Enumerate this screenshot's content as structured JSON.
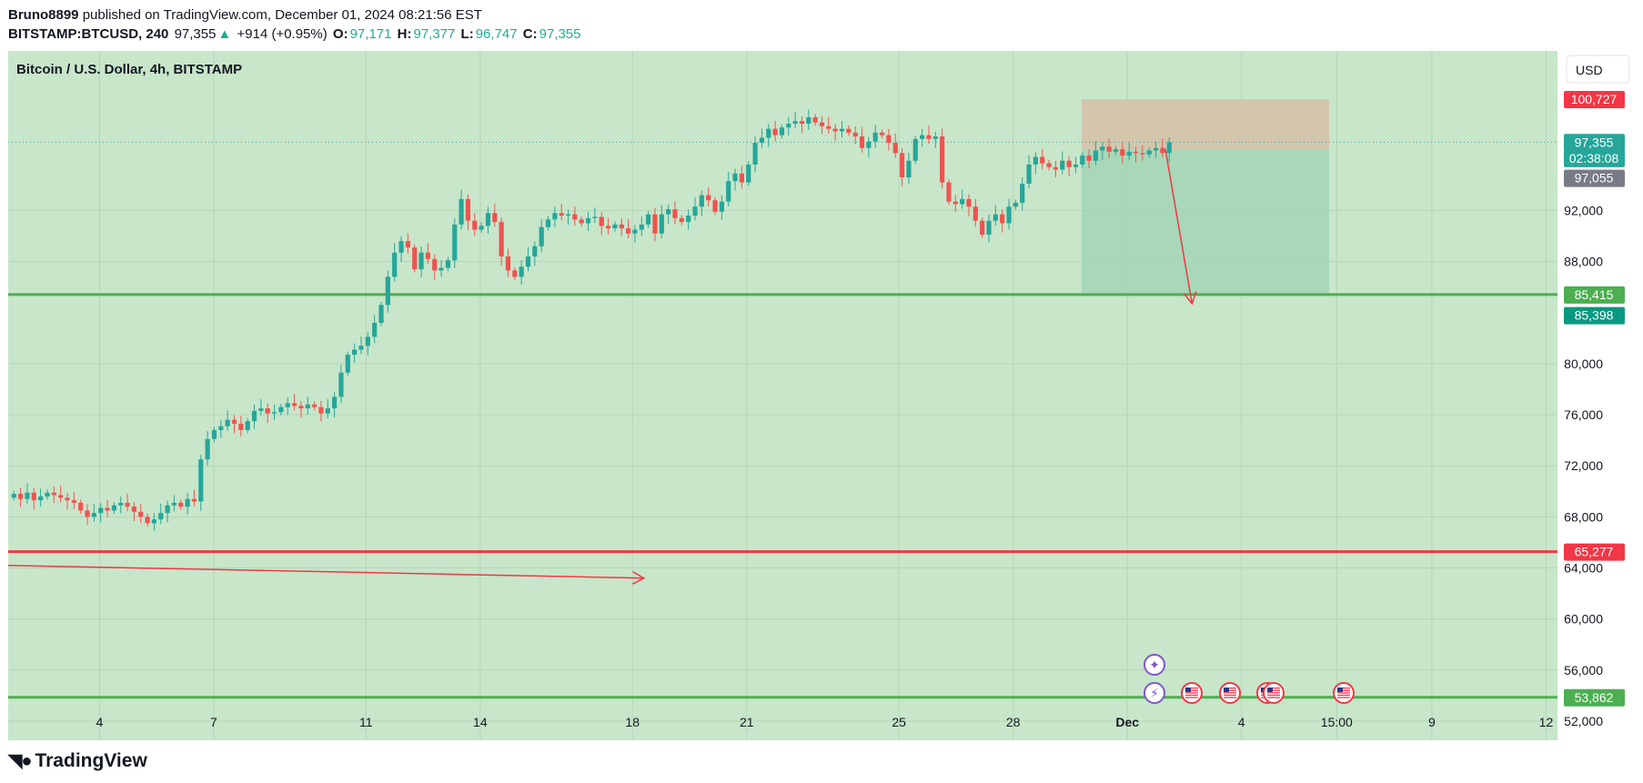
{
  "header": {
    "author": "Bruno8899",
    "published_text": "published on TradingView.com, December 01, 2024 08:21:56 EST",
    "symbol": "BITSTAMP:BTCUSD, 240",
    "last": "97,355",
    "change_arrow": "▲",
    "change": "+914 (+0.95%)",
    "o_label": "O:",
    "o_value": "97,171",
    "h_label": "H:",
    "h_value": "97,377",
    "l_label": "L:",
    "l_value": "96,747",
    "c_label": "C:",
    "c_value": "97,355"
  },
  "chart_title": "Bitcoin / U.S. Dollar, 4h, BITSTAMP",
  "currency_button": "USD",
  "footer": {
    "brand": "TradingView",
    "logo_icon": "tradingview-logo-icon"
  },
  "colors": {
    "background": "#c8e6c9",
    "up": "#26a69a",
    "down": "#ef5350",
    "support_line": "#4caf50",
    "resistance_line": "#f23645",
    "target_zone": "#a5d6b7",
    "stop_zone": "#d4c4ac"
  },
  "price_labels": [
    {
      "text": "100,727",
      "price": 100727,
      "bg": "#f23645"
    },
    {
      "text": "97,355",
      "price": 97355,
      "bg": "#26a69a"
    },
    {
      "text": "02:38:08",
      "price": 96100,
      "bg": "#26a69a"
    },
    {
      "text": "97,055",
      "price": 94550,
      "bg": "#787b86"
    },
    {
      "text": "85,415",
      "price": 85415,
      "bg": "#4caf50"
    },
    {
      "text": "85,398",
      "price": 83800,
      "bg": "#089981"
    },
    {
      "text": "65,277",
      "price": 65277,
      "bg": "#f23645"
    },
    {
      "text": "53,862",
      "price": 53862,
      "bg": "#4caf50"
    }
  ],
  "event_icons": [
    "sparkle-icon",
    "lightning-icon",
    "us-flag-icon",
    "us-flag-icon",
    "us-flag-icon",
    "us-flag-icon",
    "us-flag-icon"
  ],
  "chart_data": {
    "type": "candlestick",
    "title": "Bitcoin / U.S. Dollar, 4h, BITSTAMP",
    "ylim": [
      50500,
      104500
    ],
    "y_ticks": [
      "52,000",
      "56,000",
      "60,000",
      "64,000",
      "68,000",
      "72,000",
      "76,000",
      "80,000",
      "88,000",
      "92,000"
    ],
    "y_tick_values": [
      52000,
      56000,
      60000,
      64000,
      68000,
      72000,
      76000,
      80000,
      88000,
      92000
    ],
    "x_ticks": [
      "4",
      "7",
      "11",
      "14",
      "18",
      "21",
      "25",
      "28",
      "Dec",
      "4",
      "15:00",
      "9",
      "12"
    ],
    "x_tick_days": [
      4,
      7,
      11,
      14,
      18,
      21,
      25,
      28,
      31,
      34,
      36.5,
      39,
      42
    ],
    "xlim_days": [
      1.6,
      42.3
    ],
    "horizontal_lines": [
      {
        "price": 85415,
        "color": "#4caf50"
      },
      {
        "price": 65277,
        "color": "#f23645"
      },
      {
        "price": 53862,
        "color": "#4caf50"
      }
    ],
    "last_price": 97355,
    "short_position": {
      "start_day": 29.8,
      "end_day": 36.3,
      "entry": 96800,
      "stop": 100727,
      "target": 85415
    },
    "arrows": [
      {
        "from_day": 1.6,
        "from_price": 64200,
        "to_day": 18.3,
        "to_price": 63200
      },
      {
        "from_day": 32.0,
        "from_price": 96800,
        "to_day": 32.7,
        "to_price": 84700
      }
    ],
    "closes": [
      69800,
      69400,
      69900,
      69300,
      69600,
      69900,
      69700,
      69500,
      69300,
      69100,
      68500,
      68000,
      68300,
      68700,
      68500,
      68900,
      69100,
      68800,
      68400,
      68000,
      67500,
      67800,
      68300,
      68900,
      69100,
      68800,
      69400,
      69200,
      72500,
      74100,
      74800,
      75100,
      75600,
      75300,
      74800,
      75500,
      76300,
      76500,
      76100,
      76200,
      76600,
      76900,
      76700,
      76500,
      76800,
      76600,
      76100,
      76500,
      77400,
      79300,
      80700,
      81100,
      81400,
      82100,
      83200,
      84600,
      86800,
      88700,
      89600,
      89100,
      87400,
      88700,
      88200,
      87300,
      87500,
      88100,
      90900,
      92900,
      91200,
      90500,
      90800,
      91800,
      91100,
      88400,
      87300,
      86800,
      87600,
      88400,
      89200,
      90700,
      91300,
      91800,
      91600,
      91700,
      91300,
      91000,
      91400,
      91500,
      90800,
      90600,
      90900,
      90600,
      90200,
      90500,
      90900,
      91700,
      90200,
      91700,
      92100,
      91400,
      91100,
      91600,
      92300,
      93200,
      92800,
      91900,
      92700,
      94300,
      94900,
      94200,
      95600,
      97300,
      97700,
      98400,
      97900,
      98500,
      98800,
      99000,
      98800,
      99300,
      98900,
      98600,
      98400,
      98200,
      98400,
      98100,
      97800,
      96900,
      97400,
      98100,
      97900,
      97300,
      96500,
      94600,
      95900,
      97600,
      97900,
      97600,
      97800,
      94200,
      92700,
      92500,
      92900,
      92300,
      91200,
      90100,
      91200,
      91700,
      91000,
      92300,
      92600,
      94100,
      95600,
      96200,
      95700,
      95400,
      95200,
      95900,
      95400,
      95600,
      96300,
      95900,
      96700,
      97000,
      96600,
      96800,
      96300,
      96600,
      96500,
      96400,
      96700,
      96900,
      96500,
      97355
    ]
  }
}
